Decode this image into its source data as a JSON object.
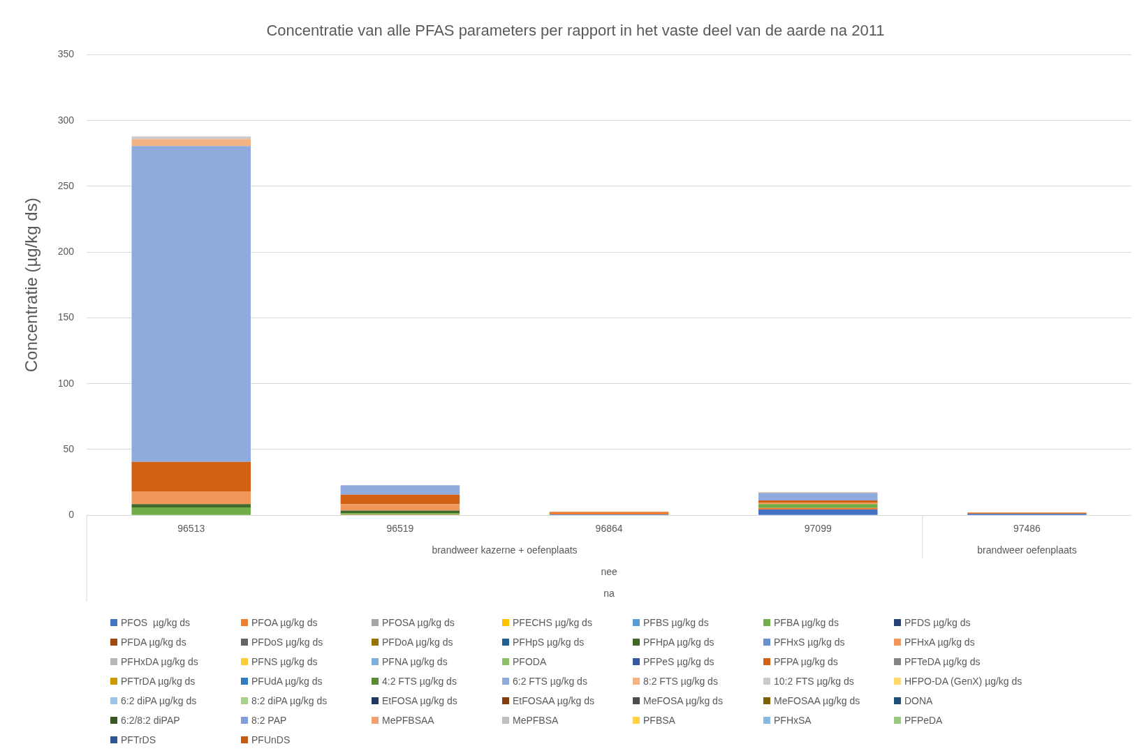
{
  "chart_data": {
    "type": "bar",
    "title": "Concentratie van alle PFAS parameters per rapport in het vaste deel van de aarde na 2011",
    "ylabel": "Concentratie (µg/kg ds)",
    "categories": [
      "96513",
      "96519",
      "96864",
      "97099",
      "97486"
    ],
    "stacked": true,
    "ylim": [
      0,
      350
    ],
    "yticks": [
      0,
      50,
      100,
      150,
      200,
      250,
      300,
      350
    ],
    "grid": "y",
    "legend": "bottom",
    "annotations": [
      "brandweer kazerne + oefenplaats",
      "brandweer oefenplaats",
      "nee",
      "na"
    ],
    "series": [
      {
        "name": "PFOS  µg/kg ds",
        "color": "#4472c4",
        "values": [
          0,
          0,
          0.6,
          4.4,
          1.2
        ]
      },
      {
        "name": "PFOA µg/kg ds",
        "color": "#ed7d31",
        "values": [
          0,
          0.5,
          2.0,
          1.2,
          0.9
        ]
      },
      {
        "name": "PFOSA µg/kg ds",
        "color": "#a5a5a5",
        "values": [
          0,
          0,
          0,
          0,
          0
        ]
      },
      {
        "name": "PFECHS µg/kg ds",
        "color": "#ffc000",
        "values": [
          0,
          0,
          0,
          0,
          0
        ]
      },
      {
        "name": "PFBS µg/kg ds",
        "color": "#5b9bd5",
        "values": [
          0,
          0,
          0,
          0,
          0
        ]
      },
      {
        "name": "PFBA µg/kg ds",
        "color": "#70ad47",
        "values": [
          6.0,
          1.0,
          0,
          2.8,
          0
        ]
      },
      {
        "name": "PFDS µg/kg ds",
        "color": "#264478",
        "values": [
          0,
          0,
          0,
          0,
          0
        ]
      },
      {
        "name": "PFDA µg/kg ds",
        "color": "#9e480e",
        "values": [
          0,
          0,
          0,
          0,
          0
        ]
      },
      {
        "name": "PFDoS µg/kg ds",
        "color": "#636363",
        "values": [
          0,
          0,
          0,
          0,
          0
        ]
      },
      {
        "name": "PFDoA µg/kg ds",
        "color": "#997300",
        "values": [
          0,
          0,
          0,
          0,
          0
        ]
      },
      {
        "name": "PFHpS µg/kg ds",
        "color": "#255e91",
        "values": [
          0,
          0,
          0,
          0,
          0
        ]
      },
      {
        "name": "PFHpA µg/kg ds",
        "color": "#43682b",
        "values": [
          2.5,
          2.0,
          0,
          0,
          0
        ]
      },
      {
        "name": "PFHxS µg/kg ds",
        "color": "#698ed0",
        "values": [
          0,
          0,
          0,
          0,
          0
        ]
      },
      {
        "name": "PFHxA µg/kg ds",
        "color": "#f1975a",
        "values": [
          9.7,
          4.9,
          0,
          1.2,
          0
        ]
      },
      {
        "name": "PFHxDA µg/kg ds",
        "color": "#b7b7b7",
        "values": [
          0,
          0,
          0,
          0,
          0
        ]
      },
      {
        "name": "PFNS µg/kg ds",
        "color": "#ffcd33",
        "values": [
          0,
          0,
          0,
          0,
          0
        ]
      },
      {
        "name": "PFNA µg/kg ds",
        "color": "#7cafdd",
        "values": [
          0,
          0,
          0,
          0,
          0
        ]
      },
      {
        "name": "PFODA",
        "color": "#8cc168",
        "values": [
          0,
          0,
          0,
          0,
          0
        ]
      },
      {
        "name": "PFPeS µg/kg ds",
        "color": "#335aa1",
        "values": [
          0,
          0,
          0,
          0,
          0
        ]
      },
      {
        "name": "PFPA µg/kg ds",
        "color": "#d26012",
        "values": [
          22.4,
          7.2,
          0,
          1.6,
          0
        ]
      },
      {
        "name": "PFTeDA µg/kg ds",
        "color": "#848484",
        "values": [
          0,
          0,
          0,
          0,
          0
        ]
      },
      {
        "name": "PFTrDA µg/kg ds",
        "color": "#cc9a00",
        "values": [
          0,
          0,
          0,
          0,
          0
        ]
      },
      {
        "name": "PFUdA µg/kg ds",
        "color": "#327dc2",
        "values": [
          0,
          0,
          0,
          0,
          0
        ]
      },
      {
        "name": "4:2 FTS µg/kg ds",
        "color": "#5a8a39",
        "values": [
          0,
          0,
          0,
          0,
          0
        ]
      },
      {
        "name": "6:2 FTS µg/kg ds",
        "color": "#8faadc",
        "values": [
          240,
          7.2,
          0,
          5.8,
          0
        ]
      },
      {
        "name": "8:2 FTS µg/kg ds",
        "color": "#f4b183",
        "values": [
          5.3,
          0,
          0,
          0.5,
          0
        ]
      },
      {
        "name": "10:2 FTS µg/kg ds",
        "color": "#c9c9c9",
        "values": [
          2.0,
          0,
          0,
          0,
          0
        ]
      },
      {
        "name": "HFPO-DA (GenX) µg/kg ds",
        "color": "#ffd966",
        "values": [
          0,
          0,
          0,
          0,
          0
        ]
      },
      {
        "name": "6:2 diPA µg/kg ds",
        "color": "#9dc3e6",
        "values": [
          0,
          0,
          0,
          0,
          0
        ]
      },
      {
        "name": "8:2 diPA µg/kg ds",
        "color": "#a9d18e",
        "values": [
          0,
          0,
          0,
          0,
          0
        ]
      },
      {
        "name": "EtFOSA µg/kg ds",
        "color": "#203864",
        "values": [
          0,
          0,
          0,
          0,
          0
        ]
      },
      {
        "name": "EtFOSAA µg/kg ds",
        "color": "#843c0c",
        "values": [
          0,
          0,
          0,
          0,
          0
        ]
      },
      {
        "name": "MeFOSA µg/kg ds",
        "color": "#4d4d4d",
        "values": [
          0,
          0,
          0,
          0,
          0
        ]
      },
      {
        "name": "MeFOSAA µg/kg ds",
        "color": "#7f6000",
        "values": [
          0,
          0,
          0,
          0,
          0
        ]
      },
      {
        "name": "DONA",
        "color": "#1f4e79",
        "values": [
          0,
          0,
          0,
          0,
          0
        ]
      },
      {
        "name": "6:2/8:2 diPAP",
        "color": "#385723",
        "values": [
          0,
          0,
          0,
          0,
          0
        ]
      },
      {
        "name": "8:2 PAP",
        "color": "#7f9fd9",
        "values": [
          0,
          0,
          0,
          0,
          0
        ]
      },
      {
        "name": "MePFBSAA",
        "color": "#f2a070",
        "values": [
          0,
          0,
          0,
          0,
          0
        ]
      },
      {
        "name": "MePFBSA",
        "color": "#bfbfbf",
        "values": [
          0,
          0,
          0,
          0,
          0
        ]
      },
      {
        "name": "PFBSA",
        "color": "#ffd243",
        "values": [
          0,
          0,
          0,
          0,
          0
        ]
      },
      {
        "name": "PFHxSA",
        "color": "#8ab8e2",
        "values": [
          0,
          0,
          0,
          0,
          0
        ]
      },
      {
        "name": "PFPeDA",
        "color": "#9aca7c",
        "values": [
          0,
          0,
          0,
          0,
          0
        ]
      },
      {
        "name": "PFTrDS",
        "color": "#2f5597",
        "values": [
          0,
          0,
          0,
          0,
          0
        ]
      },
      {
        "name": "PFUnDS",
        "color": "#c55a11",
        "values": [
          0,
          0,
          0,
          0,
          0
        ]
      }
    ]
  }
}
